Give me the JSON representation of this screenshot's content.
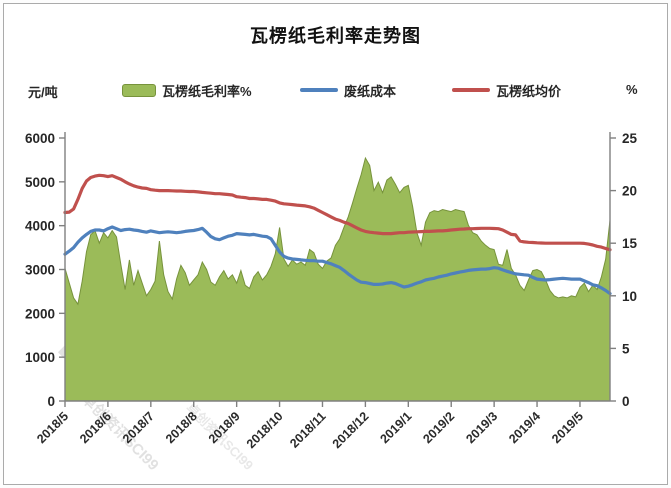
{
  "title": "瓦楞纸毛利率走势图",
  "watermark": {
    "line1": "卓创资讯SCI99",
    "line2": "卓创资讯SCI99"
  },
  "chart_data": {
    "type": "combo",
    "title": "瓦楞纸毛利率走势图",
    "background": "#ffffff",
    "grid": false,
    "legend_position": "top",
    "x_tick_labels": [
      "2018/5",
      "2018/6",
      "2018/7",
      "2018/8",
      "2018/9",
      "2018/10",
      "2018/11",
      "2018/12",
      "2019/1",
      "2019/2",
      "2019/3",
      "2019/4",
      "2019/5"
    ],
    "x_span_months": 12.7,
    "step_months": 0.1,
    "left_axis": {
      "unit": "元/吨",
      "min": 0,
      "max": 6000,
      "tick_step": 1000
    },
    "right_axis": {
      "unit": "%",
      "min": 0,
      "max": 25,
      "tick_step": 5
    },
    "axis_color": "#808080",
    "series": [
      {
        "name": "瓦楞纸毛利率%",
        "type": "area",
        "axis": "right",
        "color": "#9bbb59",
        "edge_color": "#77933c",
        "values": [
          12.6,
          11.2,
          9.8,
          9.2,
          11.4,
          14.2,
          15.8,
          16.2,
          15.0,
          16.0,
          15.5,
          16.2,
          15.6,
          13.0,
          10.6,
          13.4,
          11.0,
          12.4,
          11.2,
          10.0,
          10.6,
          11.4,
          15.2,
          12.0,
          10.4,
          9.7,
          11.6,
          12.9,
          12.2,
          11.0,
          11.5,
          12.0,
          13.2,
          12.5,
          11.3,
          11.0,
          11.8,
          12.4,
          11.6,
          12.0,
          11.2,
          12.4,
          11.0,
          10.7,
          11.8,
          12.3,
          11.5,
          12.0,
          12.8,
          14.0,
          16.5,
          13.5,
          12.8,
          13.4,
          13.0,
          13.2,
          12.9,
          14.4,
          14.1,
          13.0,
          12.6,
          13.3,
          13.6,
          14.8,
          15.4,
          16.5,
          17.5,
          18.8,
          20.2,
          21.5,
          23.1,
          22.4,
          20.0,
          20.8,
          19.8,
          21.0,
          21.3,
          20.6,
          19.8,
          20.3,
          20.5,
          18.5,
          16.0,
          14.8,
          17.0,
          17.9,
          18.1,
          18.0,
          18.2,
          18.1,
          18.0,
          18.2,
          18.1,
          18.0,
          16.7,
          16.0,
          15.8,
          15.2,
          14.8,
          14.5,
          14.4,
          13.0,
          12.9,
          14.4,
          12.6,
          12.0,
          11.0,
          10.5,
          11.5,
          12.4,
          12.5,
          12.3,
          11.5,
          10.5,
          10.0,
          9.8,
          9.9,
          9.8,
          10.0,
          9.9,
          10.8,
          11.2,
          10.4,
          11.0,
          10.6,
          11.8,
          13.5,
          17.2
        ]
      },
      {
        "name": "废纸成本",
        "type": "line",
        "axis": "left",
        "color": "#4f81bd",
        "values": [
          3350,
          3420,
          3500,
          3620,
          3720,
          3800,
          3870,
          3900,
          3900,
          3880,
          3930,
          3970,
          3930,
          3890,
          3910,
          3920,
          3900,
          3890,
          3870,
          3850,
          3880,
          3860,
          3840,
          3850,
          3860,
          3850,
          3840,
          3850,
          3870,
          3880,
          3890,
          3910,
          3940,
          3850,
          3750,
          3700,
          3680,
          3720,
          3760,
          3780,
          3820,
          3810,
          3800,
          3790,
          3800,
          3780,
          3760,
          3750,
          3700,
          3550,
          3400,
          3300,
          3260,
          3240,
          3230,
          3220,
          3210,
          3200,
          3200,
          3190,
          3190,
          3160,
          3130,
          3090,
          3050,
          2980,
          2900,
          2830,
          2760,
          2710,
          2700,
          2680,
          2660,
          2660,
          2670,
          2690,
          2700,
          2680,
          2640,
          2600,
          2620,
          2650,
          2690,
          2720,
          2760,
          2780,
          2800,
          2830,
          2850,
          2870,
          2900,
          2920,
          2940,
          2960,
          2980,
          2990,
          3000,
          3010,
          3010,
          3020,
          3040,
          3030,
          2990,
          2960,
          2930,
          2900,
          2890,
          2880,
          2870,
          2820,
          2780,
          2770,
          2760,
          2770,
          2780,
          2790,
          2800,
          2790,
          2780,
          2780,
          2780,
          2740,
          2700,
          2650,
          2630,
          2580,
          2520,
          2450
        ]
      },
      {
        "name": "瓦楞纸均价",
        "type": "line",
        "axis": "left",
        "color": "#c0504d",
        "values": [
          4300,
          4310,
          4380,
          4600,
          4850,
          5020,
          5100,
          5130,
          5150,
          5140,
          5120,
          5140,
          5100,
          5060,
          5000,
          4950,
          4910,
          4880,
          4860,
          4850,
          4820,
          4810,
          4800,
          4800,
          4800,
          4795,
          4790,
          4790,
          4785,
          4780,
          4780,
          4770,
          4760,
          4750,
          4740,
          4730,
          4730,
          4720,
          4710,
          4700,
          4660,
          4650,
          4640,
          4620,
          4620,
          4610,
          4600,
          4600,
          4580,
          4560,
          4520,
          4500,
          4490,
          4480,
          4470,
          4460,
          4450,
          4430,
          4400,
          4350,
          4300,
          4250,
          4200,
          4150,
          4120,
          4080,
          4050,
          4000,
          3950,
          3900,
          3870,
          3850,
          3840,
          3830,
          3820,
          3820,
          3820,
          3830,
          3840,
          3840,
          3850,
          3855,
          3860,
          3865,
          3870,
          3870,
          3875,
          3880,
          3880,
          3890,
          3900,
          3910,
          3920,
          3925,
          3930,
          3930,
          3935,
          3940,
          3940,
          3940,
          3935,
          3930,
          3900,
          3850,
          3800,
          3790,
          3650,
          3630,
          3620,
          3615,
          3610,
          3605,
          3600,
          3600,
          3600,
          3600,
          3600,
          3600,
          3600,
          3600,
          3600,
          3595,
          3580,
          3560,
          3530,
          3510,
          3480,
          3450
        ]
      }
    ]
  }
}
